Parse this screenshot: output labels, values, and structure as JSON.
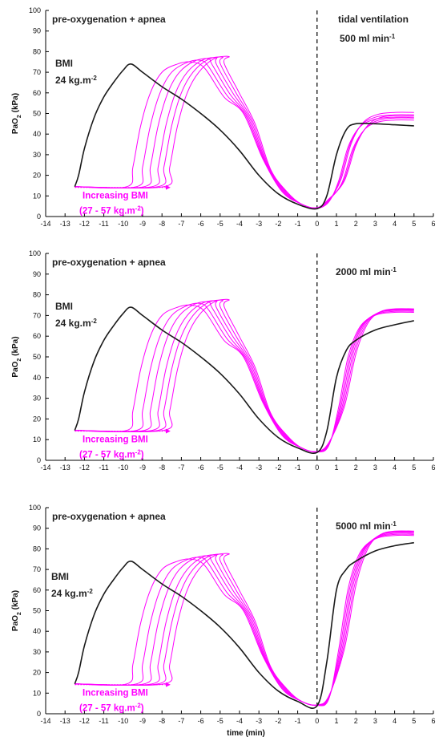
{
  "colors": {
    "baseline": "#1a1a1a",
    "bmi_series": "#ff00ff",
    "axis": "#000000"
  },
  "chart_data": [
    {
      "type": "line",
      "panel": 1,
      "xlim": [
        -14,
        6
      ],
      "ylim": [
        0,
        100
      ],
      "xticks": [
        -14,
        -13,
        -12,
        -11,
        -10,
        -9,
        -8,
        -7,
        -6,
        -5,
        -4,
        -3,
        -2,
        -1,
        0,
        1,
        2,
        3,
        4,
        5,
        6
      ],
      "yticks": [
        0,
        10,
        20,
        30,
        40,
        50,
        60,
        70,
        80,
        90,
        100
      ],
      "ylabel": {
        "main": "PaO",
        "sub": "2",
        "tail": " (kPa)"
      },
      "xlabel": "",
      "annotations": {
        "phase_left": "pre-oxygenation + apnea",
        "phase_right": "tidal ventilation",
        "flow": {
          "main": "500 ml min",
          "sup": "-1"
        },
        "bmi_label": "BMI",
        "bmi_value": {
          "main": "24 kg.m",
          "sup": "-2"
        },
        "increasing": "Increasing BMI",
        "range": {
          "main": "(27 - 57 kg.m",
          "sup": "-2",
          "tail": ")"
        }
      },
      "vline_x": 0,
      "baseline": {
        "x": [
          -12.5,
          -12.3,
          -12,
          -11.5,
          -11,
          -10.5,
          -10,
          -9.6,
          -9,
          -8,
          -7,
          -6,
          -5,
          -4,
          -3,
          -2,
          -1,
          0,
          0.5,
          1,
          1.5,
          2,
          3,
          4,
          5
        ],
        "y": [
          14.5,
          20,
          33,
          48,
          58,
          65,
          71,
          74,
          70,
          63,
          57,
          50,
          42,
          32,
          20,
          11,
          6,
          3.8,
          10,
          30,
          42,
          45,
          45,
          44.5,
          44
        ]
      },
      "series_end_y": [
        48.2,
        49.3,
        50.5,
        46.8,
        47.8,
        49
      ],
      "series_start_x": [
        -9.8,
        -9.3,
        -8.9,
        -8.5,
        -8.2,
        -7.9
      ],
      "series_peak_y": [
        75,
        75.8,
        76.5,
        77,
        77.3,
        77.6
      ],
      "series_nadir_y": [
        4,
        4,
        4.1,
        4.2,
        4.2,
        4.3
      ]
    },
    {
      "type": "line",
      "panel": 2,
      "xlim": [
        -14,
        6
      ],
      "ylim": [
        0,
        100
      ],
      "xticks": [
        -14,
        -13,
        -12,
        -11,
        -10,
        -9,
        -8,
        -7,
        -6,
        -5,
        -4,
        -3,
        -2,
        -1,
        0,
        1,
        2,
        3,
        4,
        5,
        6
      ],
      "yticks": [
        0,
        10,
        20,
        30,
        40,
        50,
        60,
        70,
        80,
        90,
        100
      ],
      "ylabel": {
        "main": "PaO",
        "sub": "2",
        "tail": " (kPa)"
      },
      "xlabel": "",
      "annotations": {
        "phase_left": "pre-oxygenation + apnea",
        "phase_right": "",
        "flow": {
          "main": "2000 ml min",
          "sup": "-1"
        },
        "bmi_label": "BMI",
        "bmi_value": {
          "main": "24 kg.m",
          "sup": "-2"
        },
        "increasing": "Increasing BMI",
        "range": {
          "main": "(27 - 57 kg.m",
          "sup": "-2",
          "tail": ")"
        }
      },
      "vline_x": 0,
      "baseline": {
        "x": [
          -12.5,
          -12.3,
          -12,
          -11.5,
          -11,
          -10.5,
          -10,
          -9.6,
          -9,
          -8,
          -7,
          -6,
          -5,
          -4,
          -3,
          -2,
          -1,
          0,
          0.5,
          1,
          1.5,
          2,
          3,
          4,
          5
        ],
        "y": [
          14.5,
          20,
          33,
          48,
          58,
          65,
          71,
          74,
          70,
          63,
          57,
          50,
          42,
          32,
          20,
          11,
          6,
          3.8,
          14,
          40,
          53,
          58,
          63,
          65.5,
          67.5
        ]
      },
      "series_end_y": [
        71.5,
        72,
        72.5,
        72.8,
        73,
        73.2
      ],
      "series_start_x": [
        -9.8,
        -9.3,
        -8.9,
        -8.5,
        -8.2,
        -7.9
      ],
      "series_peak_y": [
        75,
        75.8,
        76.5,
        77,
        77.3,
        77.6
      ],
      "series_nadir_y": [
        4,
        4,
        4.1,
        4.2,
        4.2,
        4.3
      ]
    },
    {
      "type": "line",
      "panel": 3,
      "xlim": [
        -14,
        6
      ],
      "ylim": [
        0,
        100
      ],
      "xticks": [
        -14,
        -13,
        -12,
        -11,
        -10,
        -9,
        -8,
        -7,
        -6,
        -5,
        -4,
        -3,
        -2,
        -1,
        0,
        1,
        2,
        3,
        4,
        5,
        6
      ],
      "yticks": [
        0,
        10,
        20,
        30,
        40,
        50,
        60,
        70,
        80,
        90,
        100
      ],
      "ylabel": {
        "main": "PaO",
        "sub": "2",
        "tail": " (kPa)"
      },
      "xlabel": "time (min)",
      "annotations": {
        "phase_left": "pre-oxygenation + apnea",
        "phase_right": "",
        "flow": {
          "main": "5000 ml min",
          "sup": "-1"
        },
        "bmi_label": "BMI",
        "bmi_value": {
          "main": "24 kg.m",
          "sup": "-2"
        },
        "increasing": "Increasing BMI",
        "range": {
          "main": "(27 - 57 kg.m",
          "sup": "-2",
          "tail": ")"
        }
      },
      "vline_x": 0,
      "baseline": {
        "x": [
          -12.5,
          -12.3,
          -12,
          -11.5,
          -11,
          -10.5,
          -10,
          -9.6,
          -9,
          -8,
          -7,
          -6,
          -5,
          -4,
          -3,
          -2,
          -1,
          0,
          0.5,
          1,
          1.5,
          2,
          3,
          4,
          5
        ],
        "y": [
          14.5,
          20,
          33,
          48,
          58,
          65,
          71,
          74,
          70,
          63,
          57,
          50,
          42,
          32,
          20,
          11,
          6,
          3.8,
          25,
          60,
          70,
          74,
          79,
          81.5,
          83
        ]
      },
      "series_end_y": [
        86.5,
        87,
        87.5,
        88,
        88.3,
        88.6
      ],
      "series_start_x": [
        -9.8,
        -9.3,
        -8.9,
        -8.5,
        -8.2,
        -7.9
      ],
      "series_peak_y": [
        75,
        75.8,
        76.5,
        77,
        77.3,
        77.6
      ],
      "series_nadir_y": [
        4,
        4,
        4.1,
        4.2,
        4.2,
        4.3
      ]
    }
  ]
}
